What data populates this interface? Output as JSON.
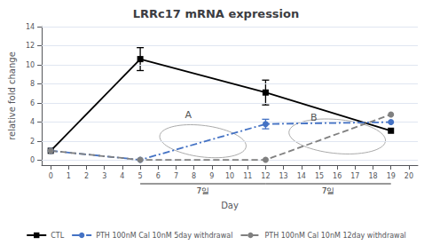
{
  "chart_data": {
    "type": "line",
    "title": "LRRc17 mRNA expression",
    "xlabel": "Day",
    "ylabel": "relative fold change",
    "xlim": [
      -0.5,
      20.5
    ],
    "xticks": [
      0,
      1,
      2,
      3,
      4,
      5,
      6,
      7,
      8,
      9,
      10,
      11,
      12,
      13,
      14,
      15,
      16,
      17,
      18,
      19,
      20
    ],
    "ylim": [
      -0.5,
      14
    ],
    "yticks": [
      0,
      2,
      4,
      6,
      8,
      10,
      12,
      14
    ],
    "grid": true,
    "legend": "bottom",
    "series": [
      {
        "name": "CTL",
        "color": "#000000",
        "x": [
          0,
          5,
          12,
          19
        ],
        "values": [
          1,
          10.6,
          7.1,
          3.1
        ],
        "yerr": [
          0,
          1.2,
          1.3,
          0
        ],
        "marker": "square",
        "line_style": "solid"
      },
      {
        "name": "PTH 100nM Cal 10nM 5day withdrawal",
        "color": "#4472c4",
        "x": [
          0,
          5,
          12,
          19
        ],
        "values": [
          1,
          0.05,
          3.8,
          4.0
        ],
        "yerr": [
          0,
          0,
          0.5,
          0
        ],
        "marker": "circle",
        "line_style": "dashdot"
      },
      {
        "name": "PTH 100nM Cal 10nM 12day withdrawal",
        "color": "#808080",
        "x": [
          0,
          5,
          12,
          19
        ],
        "values": [
          1,
          0.05,
          0.05,
          4.8
        ],
        "yerr": [
          0,
          0,
          0,
          0
        ],
        "marker": "circle",
        "line_style": "dashed"
      }
    ],
    "ellipses": [
      {
        "x": 8.5,
        "y": 2.0,
        "width": 5.0,
        "height": 3.2,
        "angle": -20,
        "color": "#aaaaaa"
      },
      {
        "x": 16.0,
        "y": 2.5,
        "width": 5.5,
        "height": 3.5,
        "angle": -15,
        "color": "#aaaaaa"
      }
    ],
    "annotations": [
      {
        "text": "A",
        "x": 7.5,
        "y": 4.2,
        "color": "#555555"
      },
      {
        "text": "B",
        "x": 14.5,
        "y": 4.0,
        "color": "#555555"
      }
    ],
    "brackets": [
      {
        "x": [
          5,
          12
        ],
        "label": "7일"
      },
      {
        "x": [
          12,
          19
        ],
        "label": "7일"
      }
    ]
  }
}
